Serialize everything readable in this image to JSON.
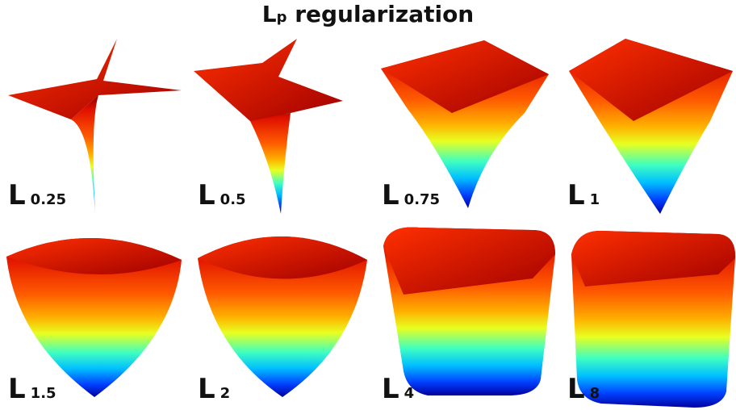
{
  "title": {
    "base": "L",
    "subscript": "p",
    "text": "regularization"
  },
  "panels": [
    {
      "letter": "L",
      "subscript": "0.25"
    },
    {
      "letter": "L",
      "subscript": "0.5"
    },
    {
      "letter": "L",
      "subscript": "0.75"
    },
    {
      "letter": "L",
      "subscript": "1"
    },
    {
      "letter": "L",
      "subscript": "1.5"
    },
    {
      "letter": "L",
      "subscript": "2"
    },
    {
      "letter": "L",
      "subscript": "4"
    },
    {
      "letter": "L",
      "subscript": "8"
    }
  ]
}
